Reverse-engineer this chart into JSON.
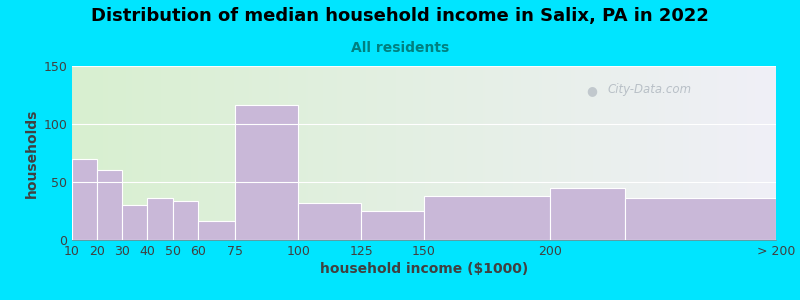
{
  "title": "Distribution of median household income in Salix, PA in 2022",
  "subtitle": "All residents",
  "xlabel": "household income ($1000)",
  "ylabel": "households",
  "bar_color": "#c9b8d8",
  "bar_edgecolor": "#ffffff",
  "background_outer": "#00e5ff",
  "background_inner_left": "#d8f0d0",
  "background_inner_right": "#f0f0f8",
  "bin_edges": [
    10,
    20,
    30,
    40,
    50,
    60,
    75,
    100,
    125,
    150,
    200,
    230,
    290
  ],
  "tick_positions": [
    10,
    20,
    30,
    40,
    50,
    60,
    75,
    100,
    125,
    150,
    200,
    290
  ],
  "tick_labels": [
    "10",
    "20",
    "30",
    "40",
    "50",
    "60",
    "75",
    "100",
    "125",
    "150",
    "200",
    "> 200"
  ],
  "values": [
    70,
    60,
    30,
    36,
    34,
    16,
    116,
    32,
    25,
    38,
    45,
    36
  ],
  "ylim": [
    0,
    150
  ],
  "yticks": [
    0,
    50,
    100,
    150
  ],
  "title_fontsize": 13,
  "subtitle_fontsize": 10,
  "axis_label_fontsize": 10,
  "tick_fontsize": 9,
  "watermark_text": "City-Data.com",
  "watermark_color": "#b0b8c0"
}
